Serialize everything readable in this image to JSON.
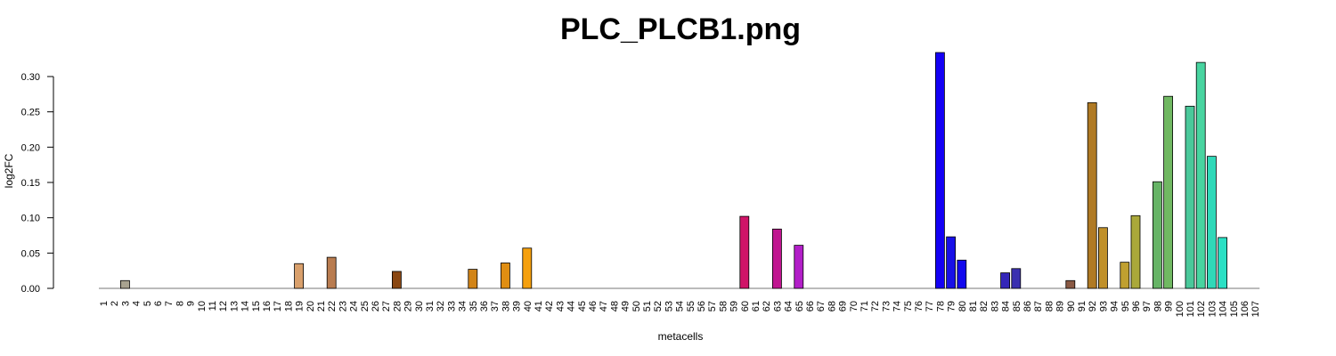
{
  "chart_data": {
    "type": "bar",
    "title": "PLC_PLCB1.png",
    "xlabel": "metacells",
    "ylabel": "log2FC",
    "ylim": [
      0,
      0.33
    ],
    "yticks": [
      "0.00",
      "0.05",
      "0.10",
      "0.15",
      "0.20",
      "0.25",
      "0.30"
    ],
    "grid": false,
    "categories": [
      "1",
      "2",
      "3",
      "4",
      "5",
      "6",
      "7",
      "8",
      "9",
      "10",
      "11",
      "12",
      "13",
      "14",
      "15",
      "16",
      "17",
      "18",
      "19",
      "20",
      "21",
      "22",
      "23",
      "24",
      "25",
      "26",
      "27",
      "28",
      "29",
      "30",
      "31",
      "32",
      "33",
      "34",
      "35",
      "36",
      "37",
      "38",
      "39",
      "40",
      "41",
      "42",
      "43",
      "44",
      "45",
      "46",
      "47",
      "48",
      "49",
      "50",
      "51",
      "52",
      "53",
      "54",
      "55",
      "56",
      "57",
      "58",
      "59",
      "60",
      "61",
      "62",
      "63",
      "64",
      "65",
      "66",
      "67",
      "68",
      "69",
      "70",
      "71",
      "72",
      "73",
      "74",
      "75",
      "76",
      "77",
      "78",
      "79",
      "80",
      "81",
      "82",
      "83",
      "84",
      "85",
      "86",
      "87",
      "88",
      "89",
      "90",
      "91",
      "92",
      "93",
      "94",
      "95",
      "96",
      "97",
      "98",
      "99",
      "100",
      "101",
      "102",
      "103",
      "104",
      "105",
      "106",
      "107"
    ],
    "values": [
      0,
      0,
      0.011,
      0,
      0,
      0,
      0,
      0,
      0,
      0,
      0,
      0,
      0,
      0,
      0,
      0,
      0,
      0,
      0.035,
      0,
      0,
      0.044,
      0,
      0,
      0,
      0,
      0,
      0.024,
      0,
      0,
      0,
      0,
      0,
      0,
      0.027,
      0,
      0,
      0.036,
      0,
      0.057,
      0,
      0,
      0,
      0,
      0,
      0,
      0,
      0,
      0,
      0,
      0,
      0,
      0,
      0,
      0,
      0,
      0,
      0,
      0,
      0.102,
      0,
      0,
      0.084,
      0,
      0.061,
      0,
      0,
      0,
      0,
      0,
      0,
      0,
      0,
      0,
      0,
      0,
      0,
      0.334,
      0.073,
      0.04,
      0,
      0,
      0,
      0.022,
      0.028,
      0,
      0,
      0,
      0,
      0.011,
      0,
      0.263,
      0.086,
      0,
      0.037,
      0.103,
      0,
      0.151,
      0.272,
      0,
      0.258,
      0.32,
      0.187,
      0.072,
      0,
      0,
      0
    ],
    "colors": [
      "#7a7a7a",
      "#7a7a7a",
      "#a8a290",
      "#7a7a7a",
      "#7a7a7a",
      "#7a7a7a",
      "#7a7a7a",
      "#7a7a7a",
      "#7a7a7a",
      "#7a7a7a",
      "#7a7a7a",
      "#7a7a7a",
      "#7a7a7a",
      "#7a7a7a",
      "#7a7a7a",
      "#7a7a7a",
      "#7a7a7a",
      "#7a7a7a",
      "#d9a06c",
      "#7a7a7a",
      "#7a7a7a",
      "#b97c50",
      "#7a7a7a",
      "#7a7a7a",
      "#7a7a7a",
      "#7a7a7a",
      "#7a7a7a",
      "#8a4712",
      "#7a7a7a",
      "#7a7a7a",
      "#7a7a7a",
      "#7a7a7a",
      "#7a7a7a",
      "#7a7a7a",
      "#d28417",
      "#7a7a7a",
      "#7a7a7a",
      "#e08e12",
      "#7a7a7a",
      "#f5a00e",
      "#7a7a7a",
      "#7a7a7a",
      "#7a7a7a",
      "#7a7a7a",
      "#7a7a7a",
      "#7a7a7a",
      "#7a7a7a",
      "#7a7a7a",
      "#7a7a7a",
      "#7a7a7a",
      "#7a7a7a",
      "#7a7a7a",
      "#7a7a7a",
      "#7a7a7a",
      "#7a7a7a",
      "#7a7a7a",
      "#7a7a7a",
      "#7a7a7a",
      "#7a7a7a",
      "#d01468",
      "#7a7a7a",
      "#7a7a7a",
      "#c01590",
      "#7a7a7a",
      "#b21fc8",
      "#7a7a7a",
      "#7a7a7a",
      "#7a7a7a",
      "#7a7a7a",
      "#7a7a7a",
      "#7a7a7a",
      "#7a7a7a",
      "#7a7a7a",
      "#7a7a7a",
      "#7a7a7a",
      "#7a7a7a",
      "#7a7a7a",
      "#1400f5",
      "#1810e8",
      "#1208ee",
      "#7a7a7a",
      "#7a7a7a",
      "#7a7a7a",
      "#3426b8",
      "#3a30b0",
      "#7a7a7a",
      "#7a7a7a",
      "#7a7a7a",
      "#7a7a7a",
      "#8a5a44",
      "#7a7a7a",
      "#b07a24",
      "#c0902a",
      "#7a7a7a",
      "#c0a030",
      "#aaa83a",
      "#7a7a7a",
      "#66b466",
      "#70b862",
      "#7a7a7a",
      "#4ac89a",
      "#48d4a0",
      "#30d8b8",
      "#2ae0c4",
      "#7a7a7a",
      "#7a7a7a",
      "#7a7a7a"
    ]
  }
}
